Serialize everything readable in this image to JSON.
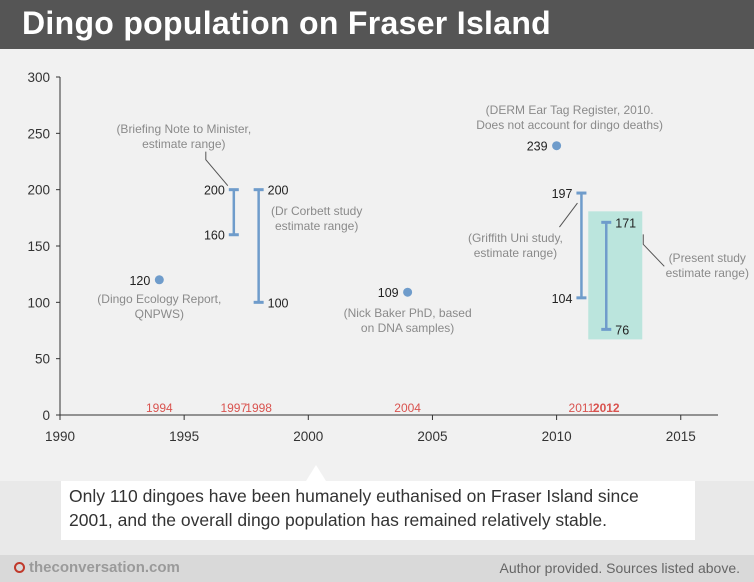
{
  "title": "Dingo population on Fraser Island",
  "caption": "Only 110 dingoes have been humanely euthanised on Fraser Island since 2001, and the overall dingo population has remained relatively stable.",
  "footer": {
    "source": "theconversation.com",
    "credit": "Author provided. Sources listed above."
  },
  "colors": {
    "marker": "#6f9ccb",
    "year_highlight": "#d9534f",
    "present_highlight": "#a8e0d6",
    "axis": "#333333",
    "annotation": "#8a8a8a"
  },
  "chart_data": {
    "type": "scatter",
    "title": "Dingo population on Fraser Island",
    "xlim": [
      1990,
      2016.5
    ],
    "ylim": [
      0,
      300
    ],
    "x_ticks": [
      1990,
      1995,
      2000,
      2005,
      2010,
      2015
    ],
    "y_ticks": [
      0,
      50,
      100,
      150,
      200,
      250,
      300
    ],
    "grid": false,
    "points": [
      {
        "id": "p1994",
        "year": 1994,
        "value": 120,
        "value_label": "120",
        "annotation": [
          "(Dingo Ecology Report,",
          "QNPWS)"
        ]
      },
      {
        "id": "p2004",
        "year": 2004,
        "value": 109,
        "value_label": "109",
        "annotation": [
          "(Nick Baker PhD, based",
          "on DNA samples)"
        ]
      },
      {
        "id": "p2010",
        "year": 2010,
        "value": 239,
        "value_label": "239",
        "annotation": [
          "(DERM Ear Tag Register, 2010.",
          "Does not account for dingo deaths)"
        ]
      }
    ],
    "ranges": [
      {
        "id": "r1997",
        "year": 1997,
        "low": 160,
        "high": 200,
        "low_label": "160",
        "high_label": "200",
        "annotation": [
          "(Briefing Note to Minister,",
          "estimate range)"
        ],
        "highlight": false
      },
      {
        "id": "r1998",
        "year": 1998,
        "low": 100,
        "high": 200,
        "low_label": "100",
        "high_label": "200",
        "annotation": [
          "(Dr Corbett study",
          "estimate range)"
        ],
        "highlight": false
      },
      {
        "id": "r2011",
        "year": 2011,
        "low": 104,
        "high": 197,
        "low_label": "104",
        "high_label": "197",
        "annotation": [
          "(Griffith Uni study,",
          "estimate range)"
        ],
        "highlight": false
      },
      {
        "id": "r2012",
        "year": 2012,
        "low": 76,
        "high": 171,
        "low_label": "76",
        "high_label": "171",
        "annotation": [
          "(Present study",
          "estimate range)"
        ],
        "highlight": true
      }
    ],
    "year_markers": [
      {
        "year": 1994,
        "label": "1994",
        "bold": false
      },
      {
        "year": 1997,
        "label": "1997",
        "bold": false
      },
      {
        "year": 1998,
        "label": "1998",
        "bold": false
      },
      {
        "year": 2004,
        "label": "2004",
        "bold": false
      },
      {
        "year": 2011,
        "label": "2011",
        "bold": false
      },
      {
        "year": 2012,
        "label": "2012",
        "bold": true
      }
    ]
  }
}
